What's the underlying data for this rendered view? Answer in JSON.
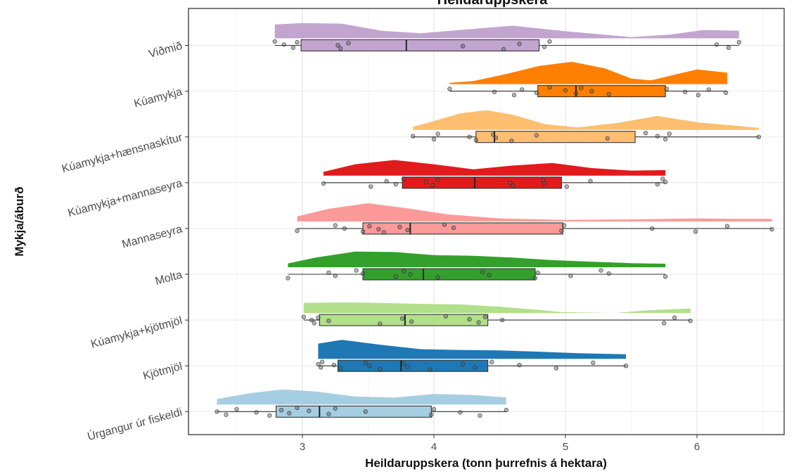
{
  "chart_data": {
    "type": "raincloud",
    "title": "Heildaruppskera",
    "xlabel": "Heildaruppskera (tonn þurrefnis á hektara)",
    "ylabel": "Mykja/áburð",
    "xlim": [
      2.13,
      6.6
    ],
    "x_ticks": [
      3,
      4,
      5,
      6
    ],
    "x_tick_labels": [
      "3",
      "4",
      "5",
      "6"
    ],
    "grid": true,
    "legend": "none",
    "groups": [
      {
        "label": "Viðmið",
        "color": "#c2a5cf",
        "box": {
          "min": 2.79,
          "q1": 2.99,
          "median": 3.79,
          "q3": 4.8,
          "max": 6.32
        },
        "points": [
          2.79,
          2.86,
          2.93,
          2.96,
          3.27,
          3.29,
          3.35,
          4.22,
          4.53,
          4.65,
          4.84,
          4.88,
          6.15,
          6.24,
          6.32
        ],
        "density": [
          [
            2.79,
            0.55
          ],
          [
            3.0,
            0.6
          ],
          [
            3.3,
            0.58
          ],
          [
            3.6,
            0.3
          ],
          [
            3.9,
            0.2
          ],
          [
            4.2,
            0.33
          ],
          [
            4.6,
            0.5
          ],
          [
            5.0,
            0.28
          ],
          [
            5.5,
            0.05
          ],
          [
            5.8,
            0.15
          ],
          [
            6.05,
            0.33
          ],
          [
            6.32,
            0.3
          ]
        ]
      },
      {
        "label": "Kúamykja",
        "color": "#ff7f00",
        "box": {
          "min": 4.12,
          "q1": 4.79,
          "median": 5.08,
          "q3": 5.76,
          "max": 6.23
        },
        "points": [
          4.12,
          4.46,
          4.61,
          4.67,
          4.78,
          4.88,
          5.0,
          5.08,
          5.12,
          5.2,
          5.33,
          5.77,
          5.91,
          6.01,
          6.09,
          6.22
        ],
        "density": [
          [
            4.12,
            0.05
          ],
          [
            4.3,
            0.12
          ],
          [
            4.55,
            0.4
          ],
          [
            4.8,
            0.72
          ],
          [
            5.05,
            0.88
          ],
          [
            5.3,
            0.62
          ],
          [
            5.5,
            0.22
          ],
          [
            5.65,
            0.15
          ],
          [
            5.85,
            0.4
          ],
          [
            6.0,
            0.58
          ],
          [
            6.23,
            0.45
          ]
        ]
      },
      {
        "label": "Kúamykja+hænsnaskítur",
        "color": "#fdbf6f",
        "box": {
          "min": 3.84,
          "q1": 4.32,
          "median": 4.46,
          "q3": 5.53,
          "max": 6.47
        },
        "points": [
          3.84,
          4.0,
          4.03,
          4.27,
          4.32,
          4.45,
          4.47,
          4.59,
          4.78,
          5.32,
          5.61,
          5.7,
          5.76,
          5.79,
          6.47
        ],
        "density": [
          [
            3.84,
            0.12
          ],
          [
            4.0,
            0.35
          ],
          [
            4.2,
            0.65
          ],
          [
            4.4,
            0.78
          ],
          [
            4.6,
            0.6
          ],
          [
            4.85,
            0.22
          ],
          [
            5.1,
            0.1
          ],
          [
            5.4,
            0.28
          ],
          [
            5.7,
            0.55
          ],
          [
            6.0,
            0.3
          ],
          [
            6.47,
            0.08
          ]
        ]
      },
      {
        "label": "Kúamykja+mannaseyra",
        "color": "#e31a1c",
        "box": {
          "min": 3.16,
          "q1": 3.76,
          "median": 4.31,
          "q3": 4.97,
          "max": 5.76
        },
        "points": [
          3.16,
          3.52,
          3.64,
          3.71,
          3.77,
          3.94,
          3.99,
          4.03,
          4.58,
          4.6,
          4.83,
          4.84,
          5.01,
          5.19,
          5.7,
          5.74,
          5.76
        ],
        "density": [
          [
            3.16,
            0.15
          ],
          [
            3.4,
            0.45
          ],
          [
            3.7,
            0.62
          ],
          [
            4.0,
            0.45
          ],
          [
            4.3,
            0.25
          ],
          [
            4.6,
            0.4
          ],
          [
            4.9,
            0.5
          ],
          [
            5.2,
            0.3
          ],
          [
            5.5,
            0.2
          ],
          [
            5.76,
            0.22
          ]
        ]
      },
      {
        "label": "Mannaseyra",
        "color": "#fb9a99",
        "box": {
          "min": 2.96,
          "q1": 3.46,
          "median": 3.82,
          "q3": 4.98,
          "max": 6.57
        },
        "points": [
          2.96,
          3.25,
          3.32,
          3.46,
          3.51,
          3.58,
          3.62,
          3.74,
          3.8,
          4.08,
          4.15,
          4.97,
          4.99,
          5.66,
          5.99,
          6.23,
          6.57
        ],
        "density": [
          [
            2.96,
            0.2
          ],
          [
            3.2,
            0.5
          ],
          [
            3.5,
            0.72
          ],
          [
            3.8,
            0.52
          ],
          [
            4.1,
            0.28
          ],
          [
            4.5,
            0.12
          ],
          [
            5.0,
            0.06
          ],
          [
            5.5,
            0.08
          ],
          [
            6.0,
            0.12
          ],
          [
            6.3,
            0.1
          ],
          [
            6.57,
            0.1
          ]
        ]
      },
      {
        "label": "Molta",
        "color": "#33a02c",
        "box": {
          "min": 2.89,
          "q1": 3.46,
          "median": 3.92,
          "q3": 4.77,
          "max": 5.76
        },
        "points": [
          2.89,
          3.2,
          3.25,
          3.41,
          3.46,
          3.71,
          3.77,
          3.82,
          4.03,
          4.37,
          4.42,
          4.77,
          4.79,
          5.04,
          5.27,
          5.33,
          5.76
        ],
        "density": [
          [
            2.89,
            0.15
          ],
          [
            3.1,
            0.38
          ],
          [
            3.4,
            0.62
          ],
          [
            3.7,
            0.6
          ],
          [
            4.0,
            0.48
          ],
          [
            4.3,
            0.45
          ],
          [
            4.6,
            0.38
          ],
          [
            4.9,
            0.28
          ],
          [
            5.2,
            0.22
          ],
          [
            5.5,
            0.16
          ],
          [
            5.76,
            0.14
          ]
        ]
      },
      {
        "label": "Kúamykja+kjötmjöl",
        "color": "#b2df8a",
        "box": {
          "min": 3.01,
          "q1": 3.13,
          "median": 3.78,
          "q3": 4.41,
          "max": 5.95
        },
        "points": [
          3.01,
          3.07,
          3.09,
          3.12,
          3.2,
          3.59,
          3.76,
          3.83,
          4.09,
          4.27,
          4.34,
          4.39,
          4.52,
          5.75,
          5.83,
          5.95
        ],
        "density": [
          [
            3.01,
            0.4
          ],
          [
            3.3,
            0.42
          ],
          [
            3.6,
            0.4
          ],
          [
            3.9,
            0.36
          ],
          [
            4.2,
            0.34
          ],
          [
            4.5,
            0.25
          ],
          [
            4.8,
            0.12
          ],
          [
            4.97,
            0.04
          ],
          [
            5.38,
            0.0
          ],
          [
            5.6,
            0.1
          ],
          [
            5.95,
            0.18
          ]
        ]
      },
      {
        "label": "Kjötmjöl",
        "color": "#1f78b4",
        "box": {
          "min": 3.12,
          "q1": 3.27,
          "median": 3.75,
          "q3": 4.41,
          "max": 5.46
        },
        "points": [
          3.12,
          3.14,
          3.15,
          3.24,
          3.29,
          3.48,
          3.51,
          3.59,
          3.77,
          3.8,
          3.97,
          4.22,
          4.31,
          4.44,
          4.65,
          4.93,
          5.21,
          5.46
        ],
        "density": [
          [
            3.12,
            0.6
          ],
          [
            3.3,
            0.75
          ],
          [
            3.6,
            0.55
          ],
          [
            3.9,
            0.38
          ],
          [
            4.2,
            0.35
          ],
          [
            4.5,
            0.33
          ],
          [
            4.8,
            0.28
          ],
          [
            5.1,
            0.22
          ],
          [
            5.46,
            0.18
          ]
        ]
      },
      {
        "label": "Úrgangur úr fiskeldi",
        "color": "#a6cee3",
        "box": {
          "min": 2.35,
          "q1": 2.8,
          "median": 3.13,
          "q3": 3.98,
          "max": 4.55
        },
        "points": [
          2.35,
          2.42,
          2.5,
          2.65,
          2.75,
          2.84,
          2.9,
          2.96,
          3.05,
          3.2,
          3.25,
          3.48,
          3.98,
          4.0,
          4.2,
          4.35,
          4.55
        ],
        "density": [
          [
            2.35,
            0.22
          ],
          [
            2.6,
            0.45
          ],
          [
            2.85,
            0.6
          ],
          [
            3.1,
            0.52
          ],
          [
            3.4,
            0.32
          ],
          [
            3.7,
            0.28
          ],
          [
            4.0,
            0.42
          ],
          [
            4.3,
            0.38
          ],
          [
            4.55,
            0.28
          ]
        ]
      }
    ]
  }
}
